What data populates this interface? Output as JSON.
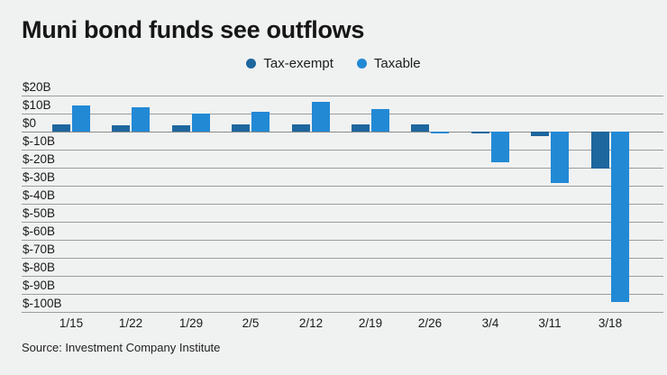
{
  "title": "Muni bond funds see outflows",
  "source": "Source: Investment Company Institute",
  "legend": [
    {
      "label": "Tax-exempt",
      "color": "#1d669e"
    },
    {
      "label": "Taxable",
      "color": "#2289d5"
    }
  ],
  "chart_data": {
    "type": "bar",
    "title": "Muni bond funds see outflows",
    "unit": "billions of US dollars (weekly fund flows)",
    "categories": [
      "1/15",
      "1/22",
      "1/29",
      "2/5",
      "2/12",
      "2/19",
      "2/26",
      "3/4",
      "3/11",
      "3/18"
    ],
    "series": [
      {
        "name": "Tax-exempt",
        "color": "#1d669e",
        "values": [
          3.7,
          3.6,
          3.4,
          3.7,
          4.0,
          3.7,
          4.0,
          -0.5,
          -2.3,
          -20.3
        ]
      },
      {
        "name": "Taxable",
        "color": "#2289d5",
        "values": [
          14.5,
          13.4,
          10.0,
          10.7,
          16.3,
          12.4,
          -0.8,
          -17.0,
          -28.5,
          -94.5
        ]
      }
    ],
    "y_ticks": [
      {
        "label": "$20B",
        "value": 20
      },
      {
        "label": "$10B",
        "value": 10
      },
      {
        "label": "$0",
        "value": 0
      },
      {
        "label": "$-10B",
        "value": -10
      },
      {
        "label": "$-20B",
        "value": -20
      },
      {
        "label": "$-30B",
        "value": -30
      },
      {
        "label": "$-40B",
        "value": -40
      },
      {
        "label": "$-50B",
        "value": -50
      },
      {
        "label": "$-60B",
        "value": -60
      },
      {
        "label": "$-70B",
        "value": -70
      },
      {
        "label": "$-80B",
        "value": -80
      },
      {
        "label": "$-90B",
        "value": -90
      },
      {
        "label": "$-100B",
        "value": -100
      }
    ],
    "ylim": [
      -100,
      20
    ],
    "grid": true,
    "legend_position": "top",
    "background": "#f0f1f1",
    "gridline_color": "#9b9c9c"
  }
}
